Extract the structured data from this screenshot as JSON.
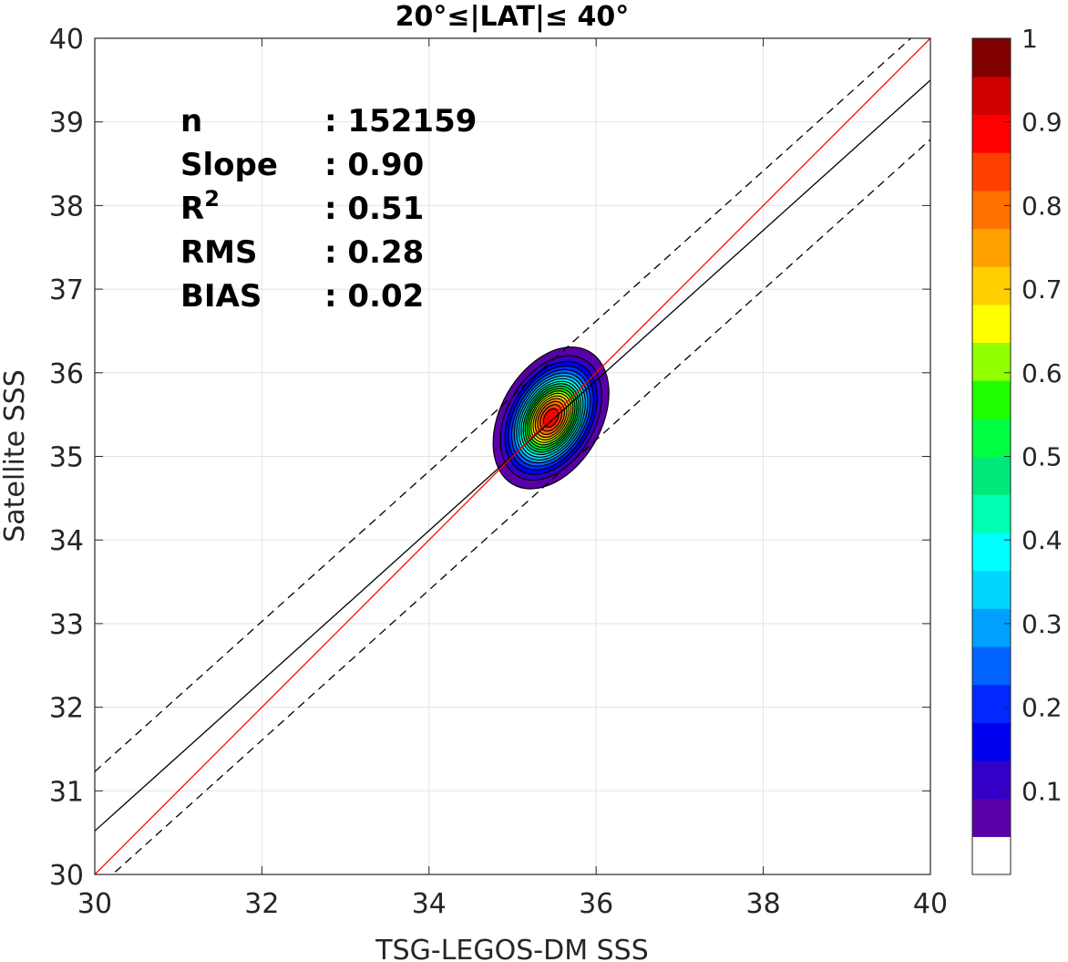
{
  "chart_data": {
    "type": "contour",
    "title": "20°≤|LAT|≤ 40°",
    "xlabel": "TSG-LEGOS-DM SSS",
    "ylabel": "Satellite SSS",
    "xlim": [
      30,
      40
    ],
    "ylim": [
      30,
      40
    ],
    "xticks": [
      "30",
      "32",
      "34",
      "36",
      "38",
      "40"
    ],
    "yticks": [
      "30",
      "31",
      "32",
      "33",
      "34",
      "35",
      "36",
      "37",
      "38",
      "39",
      "40"
    ],
    "grid": true,
    "stats": [
      {
        "label": "n",
        "value": ": 152159"
      },
      {
        "label": "Slope",
        "value": ": 0.90"
      },
      {
        "label": "R",
        "sup": "2",
        "value": ": 0.51"
      },
      {
        "label": "RMS",
        "value": ": 0.28"
      },
      {
        "label": "BIAS",
        "value": ": 0.02"
      }
    ],
    "lines": {
      "identity": {
        "x": [
          30,
          40
        ],
        "y": [
          30,
          40
        ],
        "color": "#ff0000"
      },
      "regression": {
        "x": [
          30,
          40
        ],
        "y": [
          30.52,
          39.5
        ],
        "color": "#000000"
      },
      "upper_bound": {
        "x": [
          30,
          40
        ],
        "y": [
          31.23,
          40.21
        ],
        "color": "#000000",
        "dash": true
      },
      "lower_bound": {
        "x": [
          30,
          40
        ],
        "y": [
          29.81,
          38.79
        ],
        "color": "#000000",
        "dash": true
      }
    },
    "density_peak": {
      "x": 35.46,
      "y": 35.46
    },
    "contour_levels": [
      0.05,
      0.1,
      0.15,
      0.2,
      0.25,
      0.3,
      0.35,
      0.4,
      0.45,
      0.5,
      0.55,
      0.6,
      0.65,
      0.7,
      0.75,
      0.8,
      0.85,
      0.9,
      0.95
    ],
    "colorbar": {
      "ticks": [
        "0.1",
        "0.2",
        "0.3",
        "0.4",
        "0.5",
        "0.6",
        "0.7",
        "0.8",
        "0.9",
        "1"
      ],
      "colors": [
        "#ffffff",
        "#5a00a8",
        "#3400c8",
        "#0000f0",
        "#0028ff",
        "#0064ff",
        "#00a0ff",
        "#00d4ff",
        "#00ffff",
        "#00ffb0",
        "#00e87a",
        "#00ff40",
        "#20ff00",
        "#90ff00",
        "#ffff00",
        "#ffd000",
        "#ffa000",
        "#ff7000",
        "#ff4000",
        "#ff0000",
        "#d00000",
        "#800000"
      ]
    }
  }
}
